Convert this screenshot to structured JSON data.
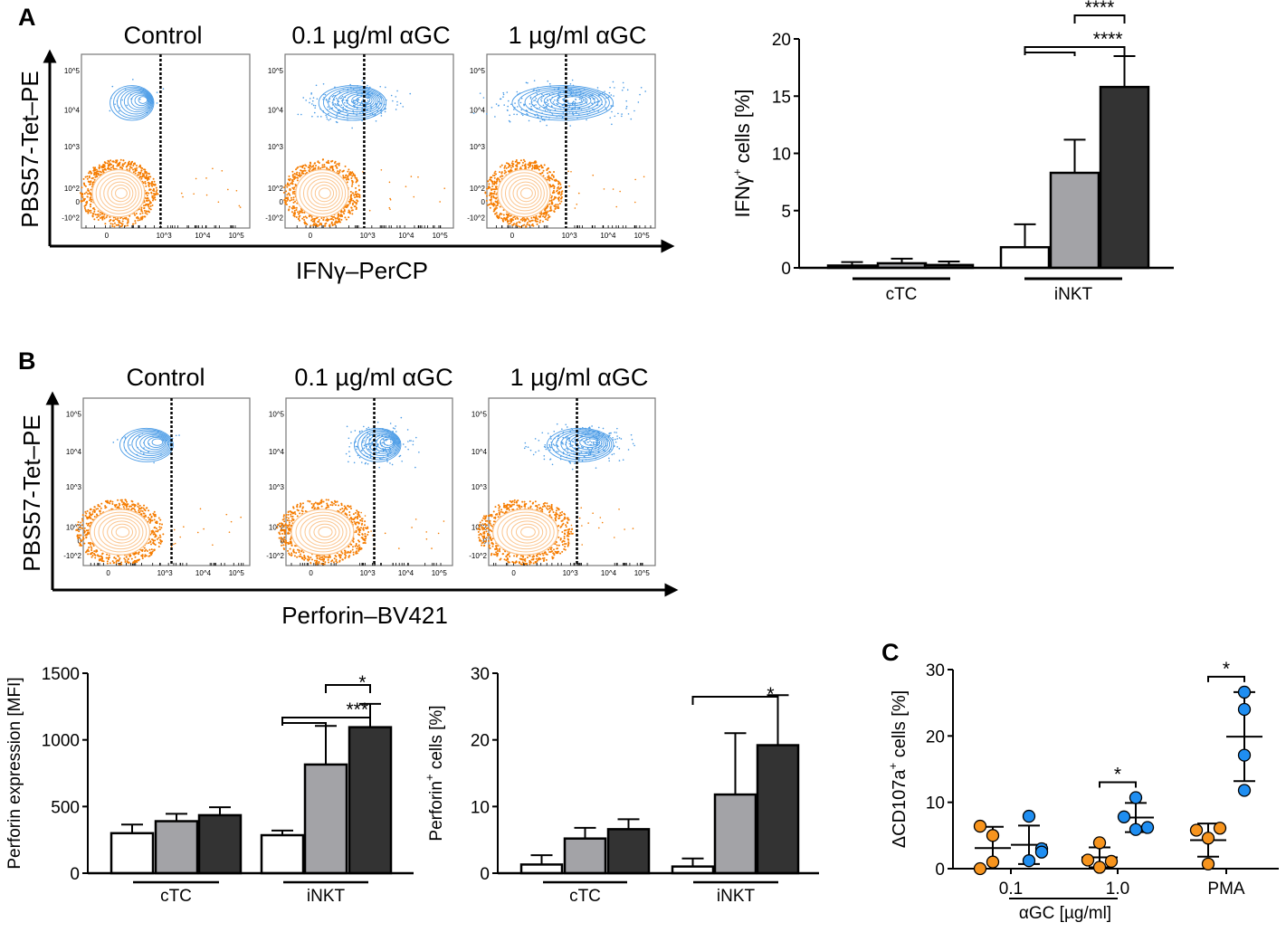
{
  "panels": {
    "a": "A",
    "b": "B",
    "c": "C"
  },
  "flow": {
    "a": {
      "titles": [
        "Control",
        "0.1 µg/ml αGC",
        "1 µg/ml αGC"
      ],
      "ylabel": "PBS57-Tet–PE",
      "xlabel": "IFNγ–PerCP"
    },
    "b": {
      "titles": [
        "Control",
        "0.1 µg/ml αGC",
        "1 µg/ml αGC"
      ],
      "ylabel": "PBS57-Tet–PE",
      "xlabel": "Perforin–BV421"
    },
    "y_ticks": [
      "10^5",
      "10^4",
      "10^3",
      "10^2",
      "0",
      "-10^2"
    ],
    "x_ticks": [
      "0",
      "10^3",
      "10^4",
      "10^5"
    ],
    "colors": {
      "inkt": "#4a9be6",
      "ctc": "#f57c00",
      "ctc_light": "#fbc58f"
    }
  },
  "chart_data": [
    {
      "id": "ifng",
      "type": "bar",
      "ylabel": "IFNγ+ cells [%]",
      "ylabel_main": "IFNγ",
      "ylabel_sup": "+",
      "ylabel_rest": " cells [%]",
      "ylim": [
        0,
        20
      ],
      "yticks": [
        0,
        5,
        10,
        15,
        20
      ],
      "groups": [
        "cTC",
        "iNKT"
      ],
      "series": [
        {
          "name": "Control",
          "color": "#ffffff",
          "values": [
            0.2,
            1.8
          ],
          "err": [
            0.5,
            3.8
          ]
        },
        {
          "name": "0.1 µg/ml αGC",
          "color": "#a3a3a7",
          "values": [
            0.4,
            8.3
          ],
          "err": [
            0.8,
            11.2
          ]
        },
        {
          "name": "1 µg/ml αGC",
          "color": "#333333",
          "values": [
            0.25,
            15.8
          ],
          "err": [
            0.55,
            18.5
          ]
        }
      ],
      "significance": [
        {
          "group": "iNKT",
          "from": 1,
          "to": 2,
          "label": "****"
        },
        {
          "group": "iNKT",
          "from": 0,
          "to": 2,
          "label": "****"
        }
      ]
    },
    {
      "id": "perforin_mfi",
      "type": "bar",
      "ylabel": "Perforin expression [MFI]",
      "ylim": [
        0,
        1500
      ],
      "yticks": [
        0,
        500,
        1000,
        1500
      ],
      "groups": [
        "cTC",
        "iNKT"
      ],
      "series": [
        {
          "name": "Control",
          "color": "#ffffff",
          "values": [
            300,
            285
          ],
          "err": [
            365,
            320
          ]
        },
        {
          "name": "0.1 µg/ml αGC",
          "color": "#a3a3a7",
          "values": [
            390,
            815
          ],
          "err": [
            445,
            1105
          ]
        },
        {
          "name": "1 µg/ml αGC",
          "color": "#333333",
          "values": [
            435,
            1095
          ],
          "err": [
            495,
            1270
          ]
        }
      ],
      "significance": [
        {
          "group": "iNKT",
          "from": 1,
          "to": 2,
          "label": "*"
        },
        {
          "group": "iNKT",
          "from": 0,
          "to": 2,
          "label": "***"
        }
      ]
    },
    {
      "id": "perforin_pos",
      "type": "bar",
      "ylabel": "Perforin+ cells [%]",
      "ylabel_main": "Perforin",
      "ylabel_sup": "+",
      "ylabel_rest": " cells [%]",
      "ylim": [
        0,
        30
      ],
      "yticks": [
        0,
        10,
        20,
        30
      ],
      "groups": [
        "cTC",
        "iNKT"
      ],
      "series": [
        {
          "name": "Control",
          "color": "#ffffff",
          "values": [
            1.3,
            1.0
          ],
          "err": [
            2.7,
            2.2
          ]
        },
        {
          "name": "0.1 µg/ml αGC",
          "color": "#a3a3a7",
          "values": [
            5.2,
            11.8
          ],
          "err": [
            6.8,
            21.0
          ]
        },
        {
          "name": "1 µg/ml αGC",
          "color": "#333333",
          "values": [
            6.6,
            19.2
          ],
          "err": [
            8.1,
            26.7
          ]
        }
      ],
      "significance": [
        {
          "group": "iNKT",
          "from": 0,
          "to": 2,
          "label": "*"
        }
      ]
    },
    {
      "id": "cd107a",
      "type": "scatter",
      "ylabel": "ΔCD107a+ cells [%]",
      "ylabel_main": "ΔCD107a",
      "ylabel_sup": "+",
      "ylabel_rest": " cells [%]",
      "xlabel": "αGC [µg/ml]",
      "ylim": [
        0,
        30
      ],
      "yticks": [
        0,
        10,
        20,
        30
      ],
      "categories": [
        "0.1",
        "1.0",
        "PMA"
      ],
      "series": [
        {
          "name": "cTC",
          "color": "#f7941d",
          "points": [
            [
              6.4,
              5.0,
              1.0,
              0.0
            ],
            [
              3.9,
              1.3,
              1.1,
              0.2
            ],
            [
              5.8,
              6.1,
              4.6,
              0.7
            ]
          ],
          "mean": [
            3.1,
            1.7,
            4.3
          ],
          "sd": [
            3.2,
            1.5,
            2.5
          ]
        },
        {
          "name": "iNKT",
          "color": "#1f8ef1",
          "points": [
            [
              7.9,
              3.0,
              2.5,
              1.2
            ],
            [
              10.7,
              7.8,
              6.2,
              5.9
            ],
            [
              26.6,
              24.0,
              17.1,
              11.8
            ]
          ],
          "mean": [
            3.6,
            7.7,
            19.9
          ],
          "sd": [
            2.9,
            2.2,
            6.7
          ]
        }
      ],
      "significance": [
        {
          "category": "1.0",
          "label": "*"
        },
        {
          "category": "PMA",
          "label": "*"
        }
      ]
    }
  ]
}
